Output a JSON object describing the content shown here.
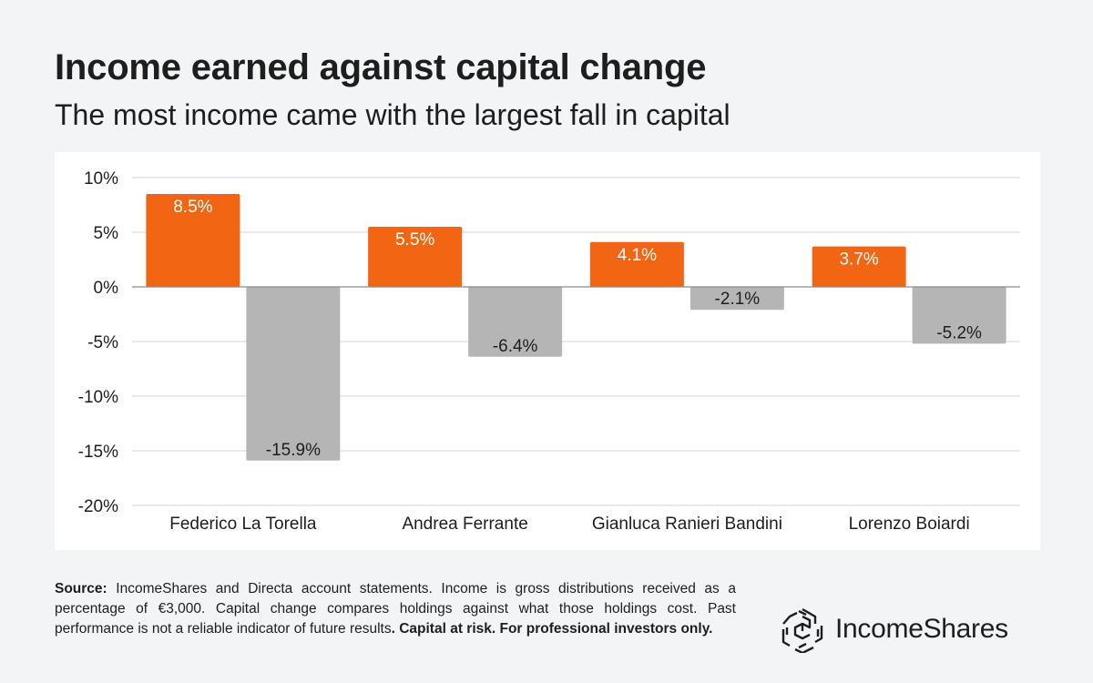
{
  "header": {
    "title": "Income earned against capital change",
    "subtitle": "The most income came with the largest fall in capital"
  },
  "colors": {
    "income": "#f26513",
    "capital": "#b5b5b5",
    "grid": "#d6d6d6",
    "background": "#f3f4f6",
    "panel": "#ffffff"
  },
  "chart_data": {
    "type": "bar",
    "title": "",
    "xlabel": "",
    "ylabel": "",
    "categories": [
      "Federico La Torella",
      "Andrea Ferrante",
      "Gianluca Ranieri Bandini",
      "Lorenzo Boiardi"
    ],
    "series": [
      {
        "values": [
          8.5,
          5.5,
          4.1,
          3.7
        ],
        "color": "#f26513",
        "labels": [
          "8.5%",
          "5.5%",
          "4.1%",
          "3.7%"
        ]
      },
      {
        "values": [
          -15.9,
          -6.4,
          -2.1,
          -5.2
        ],
        "color": "#b5b5b5",
        "labels": [
          "-15.9%",
          "-6.4%",
          "-2.1%",
          "-5.2%"
        ]
      }
    ],
    "ylim": [
      -20,
      10
    ],
    "yticks": [
      10,
      5,
      0,
      -5,
      -10,
      -15,
      -20
    ],
    "ytick_labels": [
      "10%",
      "5%",
      "0%",
      "-5%",
      "-10%",
      "-15%",
      "-20%"
    ],
    "grid": true,
    "legend": "none"
  },
  "footer": {
    "source_label": "Source:",
    "source_text": " IncomeShares and Directa account statements. Income is gross distributions received as a percentage of €3,000. Capital change compares holdings against what those holdings cost. Past performance is not a reliable indicator of future results",
    "warning_text": ". Capital at risk. For professional investors only."
  },
  "brand": {
    "logo_icon": "incomeshares-hexagon-logo-icon",
    "name": "IncomeShares"
  }
}
